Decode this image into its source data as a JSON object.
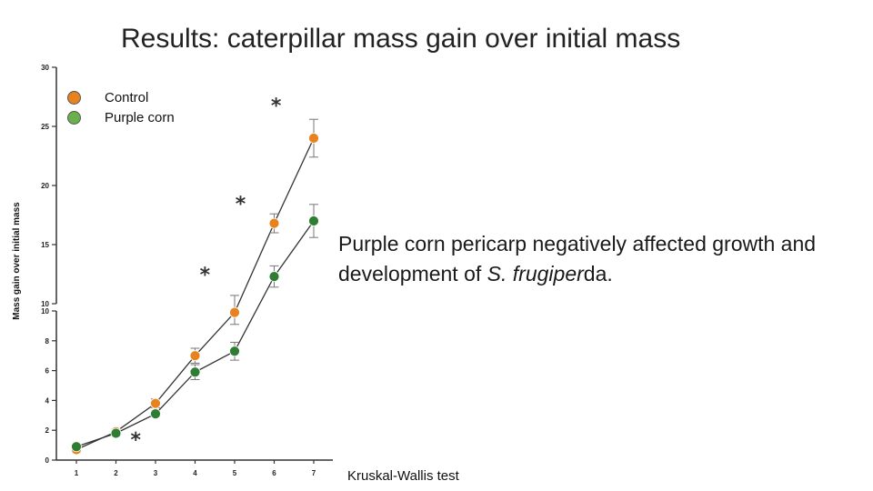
{
  "slide": {
    "title": "Results: caterpillar mass gain over initial mass",
    "summary_part1": "Purple corn pericarp negatively affected growth and",
    "summary_part2": "development of ",
    "species_italic": "S. frugiper",
    "species_plain": "da",
    "summary_end": ".",
    "test_note": "Kruskal-Wallis test"
  },
  "chart_data": {
    "type": "line",
    "x": [
      1,
      2,
      3,
      4,
      5,
      6,
      7
    ],
    "xticks": [
      "1",
      "2",
      "3",
      "4",
      "5",
      "6",
      "7"
    ],
    "ylabel": "Mass gain over initial mass",
    "xlabel": "",
    "ylim_lower": [
      0,
      10
    ],
    "ylim_upper": [
      10,
      30
    ],
    "yticks_lower": [
      "0",
      "2",
      "4",
      "6",
      "8",
      "10"
    ],
    "yticks_upper": [
      "10",
      "15",
      "20",
      "25",
      "30"
    ],
    "series": [
      {
        "name": "Control",
        "color": "#e8821e",
        "values": [
          0.7,
          1.9,
          3.8,
          7.0,
          9.9,
          16.8,
          24.0
        ],
        "errors": [
          0.2,
          0.2,
          0.3,
          0.5,
          0.8,
          0.8,
          1.6
        ]
      },
      {
        "name": "Purple corn",
        "color": "#2f7d32",
        "values": [
          0.9,
          1.8,
          3.1,
          5.9,
          7.3,
          12.3,
          17.0
        ],
        "errors": [
          0.1,
          0.2,
          0.2,
          0.5,
          0.6,
          0.9,
          1.4
        ]
      }
    ],
    "legend": [
      {
        "label": "Control",
        "color": "#e8821e"
      },
      {
        "label": "Purple corn",
        "color": "#6ab04c"
      }
    ],
    "significance": [
      {
        "x": 2.5,
        "y": 1.4,
        "label": "*"
      },
      {
        "x": 4.25,
        "y": 12.5,
        "label": "*"
      },
      {
        "x": 5.15,
        "y": 18.5,
        "label": "*"
      },
      {
        "x": 6.05,
        "y": 26.8,
        "label": "*"
      }
    ],
    "legend_position": "top-left"
  }
}
